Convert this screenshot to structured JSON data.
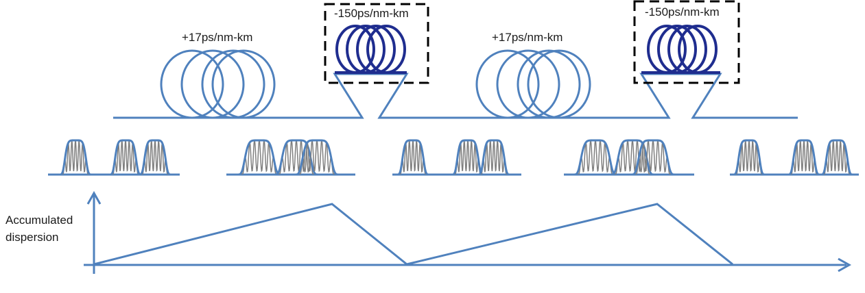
{
  "labels": {
    "spool1": "+17ps/nm-km",
    "dcf1": "-150ps/nm-km",
    "spool2": "+17ps/nm-km",
    "dcf2": "-150ps/nm-km"
  },
  "y_axis_label": {
    "line1": "Accumulated",
    "line2": "dispersion"
  },
  "colors": {
    "fiber": "#4f81bd",
    "dcf": "#1f2d8f",
    "pulse": "#7f7f7f",
    "box": "#000000"
  }
}
